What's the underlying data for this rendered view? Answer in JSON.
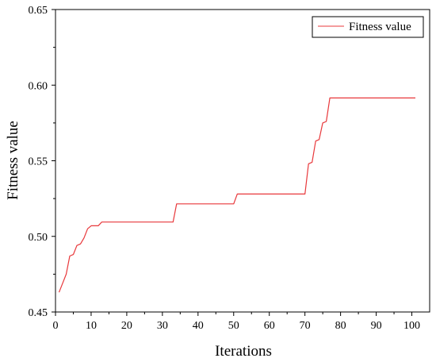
{
  "chart_data": {
    "type": "line",
    "title": "",
    "xlabel": "Iterations",
    "ylabel": "Fitness value",
    "xlim": [
      0,
      105
    ],
    "ylim": [
      0.45,
      0.65
    ],
    "xticks": [
      0,
      10,
      20,
      30,
      40,
      50,
      60,
      70,
      80,
      90,
      100
    ],
    "xtick_labels": [
      "0",
      "10",
      "20",
      "30",
      "40",
      "50",
      "60",
      "70",
      "80",
      "90",
      "100"
    ],
    "yticks": [
      0.45,
      0.5,
      0.55,
      0.6,
      0.65
    ],
    "ytick_labels": [
      "0.45",
      "0.50",
      "0.55",
      "0.60",
      "0.65"
    ],
    "grid": false,
    "legend_position": "top-right",
    "series": [
      {
        "name": "Fitness value",
        "color": "#e8383b",
        "x": [
          1,
          2,
          3,
          4,
          5,
          6,
          7,
          8,
          9,
          10,
          11,
          12,
          13,
          14,
          20,
          25,
          30,
          33,
          34,
          40,
          45,
          50,
          51,
          60,
          65,
          70,
          71,
          72,
          73,
          74,
          75,
          76,
          77,
          80,
          90,
          101
        ],
        "y": [
          0.463,
          0.469,
          0.475,
          0.487,
          0.488,
          0.494,
          0.495,
          0.499,
          0.505,
          0.507,
          0.507,
          0.507,
          0.5095,
          0.5095,
          0.5095,
          0.5095,
          0.5095,
          0.5095,
          0.5215,
          0.5215,
          0.5215,
          0.5215,
          0.528,
          0.528,
          0.528,
          0.528,
          0.548,
          0.549,
          0.563,
          0.564,
          0.575,
          0.576,
          0.5915,
          0.5915,
          0.5915,
          0.5915
        ]
      }
    ]
  }
}
